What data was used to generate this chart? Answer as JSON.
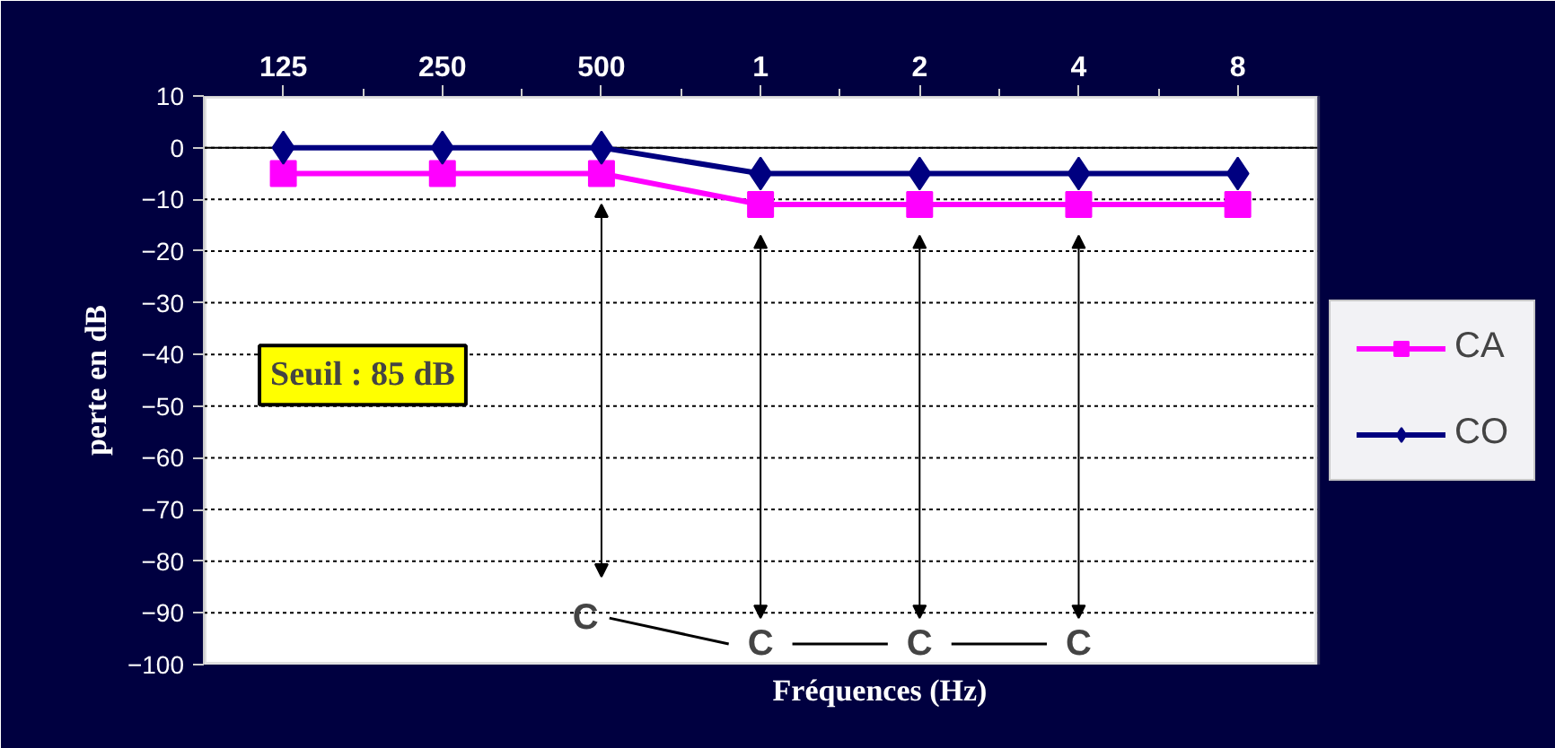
{
  "chart_data": {
    "type": "line",
    "xlabel": "Fréquences (Hz)",
    "ylabel": "perte en dB",
    "categories": [
      "125",
      "250",
      "500",
      "1",
      "2",
      "4",
      "8"
    ],
    "series": [
      {
        "name": "CA",
        "color": "#ff00ff",
        "marker": "square",
        "values": [
          -5,
          -5,
          -5,
          -11,
          -11,
          -11,
          -11
        ]
      },
      {
        "name": "CO",
        "color": "#000080",
        "marker": "diamond",
        "values": [
          0,
          0,
          0,
          -5,
          -5,
          -5,
          -5
        ]
      }
    ],
    "ylim": [
      -100,
      10
    ],
    "yticks": [
      10,
      0,
      -10,
      -20,
      -30,
      -40,
      -50,
      -60,
      -70,
      -80,
      -90,
      -100
    ],
    "grid": "y",
    "legend": "right",
    "line_style": "solid",
    "ref_lines": [
      {
        "axis": "y",
        "value": 0,
        "color": "#000000",
        "line_style": "solid"
      }
    ],
    "annotations": [
      "Seuil : 85 dB",
      "C",
      "C",
      "C",
      "C"
    ]
  }
}
